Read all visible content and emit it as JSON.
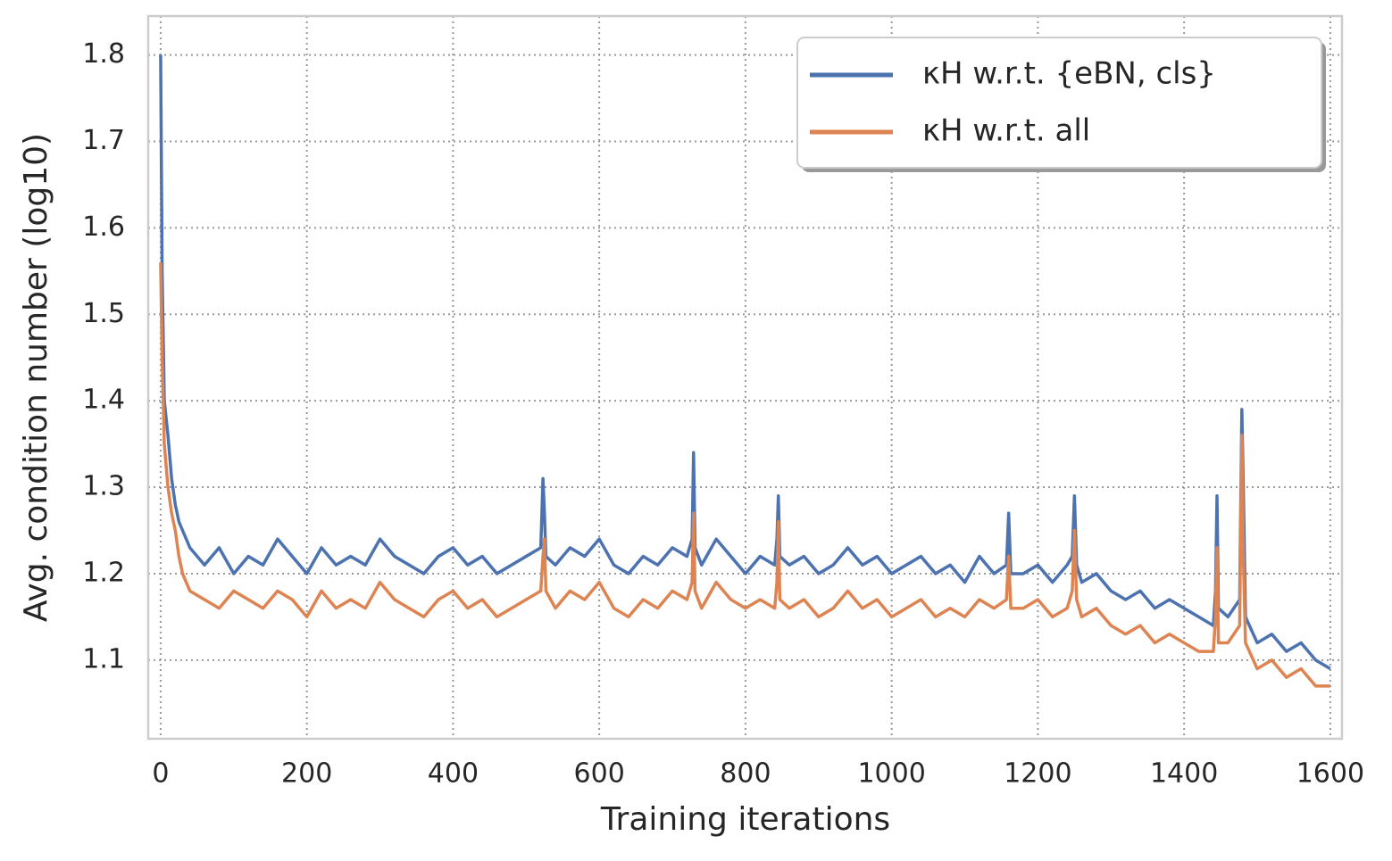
{
  "chart_data": {
    "type": "line",
    "xlabel": "Training iterations",
    "ylabel": "Avg. condition number (log10)",
    "x": [
      0,
      2,
      5,
      10,
      15,
      20,
      25,
      30,
      40,
      60,
      80,
      100,
      120,
      140,
      160,
      180,
      200,
      220,
      240,
      260,
      280,
      300,
      320,
      340,
      360,
      380,
      400,
      420,
      440,
      460,
      480,
      500,
      520,
      523,
      525,
      527,
      540,
      560,
      580,
      600,
      620,
      640,
      660,
      680,
      700,
      720,
      727,
      729,
      731,
      740,
      760,
      780,
      800,
      820,
      840,
      843,
      845,
      847,
      860,
      880,
      900,
      920,
      940,
      960,
      980,
      1000,
      1020,
      1040,
      1060,
      1080,
      1100,
      1120,
      1140,
      1157,
      1160,
      1163,
      1180,
      1200,
      1220,
      1240,
      1247,
      1250,
      1253,
      1260,
      1280,
      1300,
      1320,
      1340,
      1360,
      1380,
      1400,
      1420,
      1440,
      1443,
      1445,
      1447,
      1460,
      1476,
      1479,
      1481,
      1484,
      1500,
      1520,
      1540,
      1560,
      1580,
      1600
    ],
    "series": [
      {
        "name": "κH w.r.t. {eBN, cls}",
        "color": "#4c72b0",
        "values": [
          1.8,
          1.55,
          1.4,
          1.36,
          1.31,
          1.28,
          1.26,
          1.25,
          1.23,
          1.21,
          1.23,
          1.2,
          1.22,
          1.21,
          1.24,
          1.22,
          1.2,
          1.23,
          1.21,
          1.22,
          1.21,
          1.24,
          1.22,
          1.21,
          1.2,
          1.22,
          1.23,
          1.21,
          1.22,
          1.2,
          1.21,
          1.22,
          1.23,
          1.31,
          1.27,
          1.22,
          1.21,
          1.23,
          1.22,
          1.24,
          1.21,
          1.2,
          1.22,
          1.21,
          1.23,
          1.22,
          1.24,
          1.34,
          1.23,
          1.21,
          1.24,
          1.22,
          1.2,
          1.22,
          1.21,
          1.24,
          1.29,
          1.22,
          1.21,
          1.22,
          1.2,
          1.21,
          1.23,
          1.21,
          1.22,
          1.2,
          1.21,
          1.22,
          1.2,
          1.21,
          1.19,
          1.22,
          1.2,
          1.21,
          1.27,
          1.2,
          1.2,
          1.21,
          1.19,
          1.21,
          1.22,
          1.29,
          1.21,
          1.19,
          1.2,
          1.18,
          1.17,
          1.18,
          1.16,
          1.17,
          1.16,
          1.15,
          1.14,
          1.18,
          1.29,
          1.16,
          1.15,
          1.17,
          1.39,
          1.3,
          1.15,
          1.12,
          1.13,
          1.11,
          1.12,
          1.1,
          1.09
        ]
      },
      {
        "name": "κH w.r.t. all",
        "color": "#dd8452",
        "values": [
          1.56,
          1.45,
          1.35,
          1.3,
          1.27,
          1.25,
          1.22,
          1.2,
          1.18,
          1.17,
          1.16,
          1.18,
          1.17,
          1.16,
          1.18,
          1.17,
          1.15,
          1.18,
          1.16,
          1.17,
          1.16,
          1.19,
          1.17,
          1.16,
          1.15,
          1.17,
          1.18,
          1.16,
          1.17,
          1.15,
          1.16,
          1.17,
          1.18,
          1.22,
          1.24,
          1.18,
          1.16,
          1.18,
          1.17,
          1.19,
          1.16,
          1.15,
          1.17,
          1.16,
          1.18,
          1.17,
          1.19,
          1.27,
          1.18,
          1.16,
          1.19,
          1.17,
          1.16,
          1.17,
          1.16,
          1.19,
          1.26,
          1.17,
          1.16,
          1.17,
          1.15,
          1.16,
          1.18,
          1.16,
          1.17,
          1.15,
          1.16,
          1.17,
          1.15,
          1.16,
          1.15,
          1.17,
          1.16,
          1.17,
          1.22,
          1.16,
          1.16,
          1.17,
          1.15,
          1.16,
          1.18,
          1.25,
          1.17,
          1.15,
          1.16,
          1.14,
          1.13,
          1.14,
          1.12,
          1.13,
          1.12,
          1.11,
          1.11,
          1.15,
          1.23,
          1.12,
          1.12,
          1.14,
          1.36,
          1.22,
          1.12,
          1.09,
          1.1,
          1.08,
          1.09,
          1.07,
          1.07
        ]
      }
    ],
    "xlim": [
      -17,
      1616
    ],
    "ylim": [
      1.009,
      1.845
    ],
    "xticks": [
      0,
      200,
      400,
      600,
      800,
      1000,
      1200,
      1400,
      1600
    ],
    "yticks": [
      1.1,
      1.2,
      1.3,
      1.4,
      1.5,
      1.6,
      1.7,
      1.8
    ],
    "grid": true,
    "legend": "upper right"
  }
}
